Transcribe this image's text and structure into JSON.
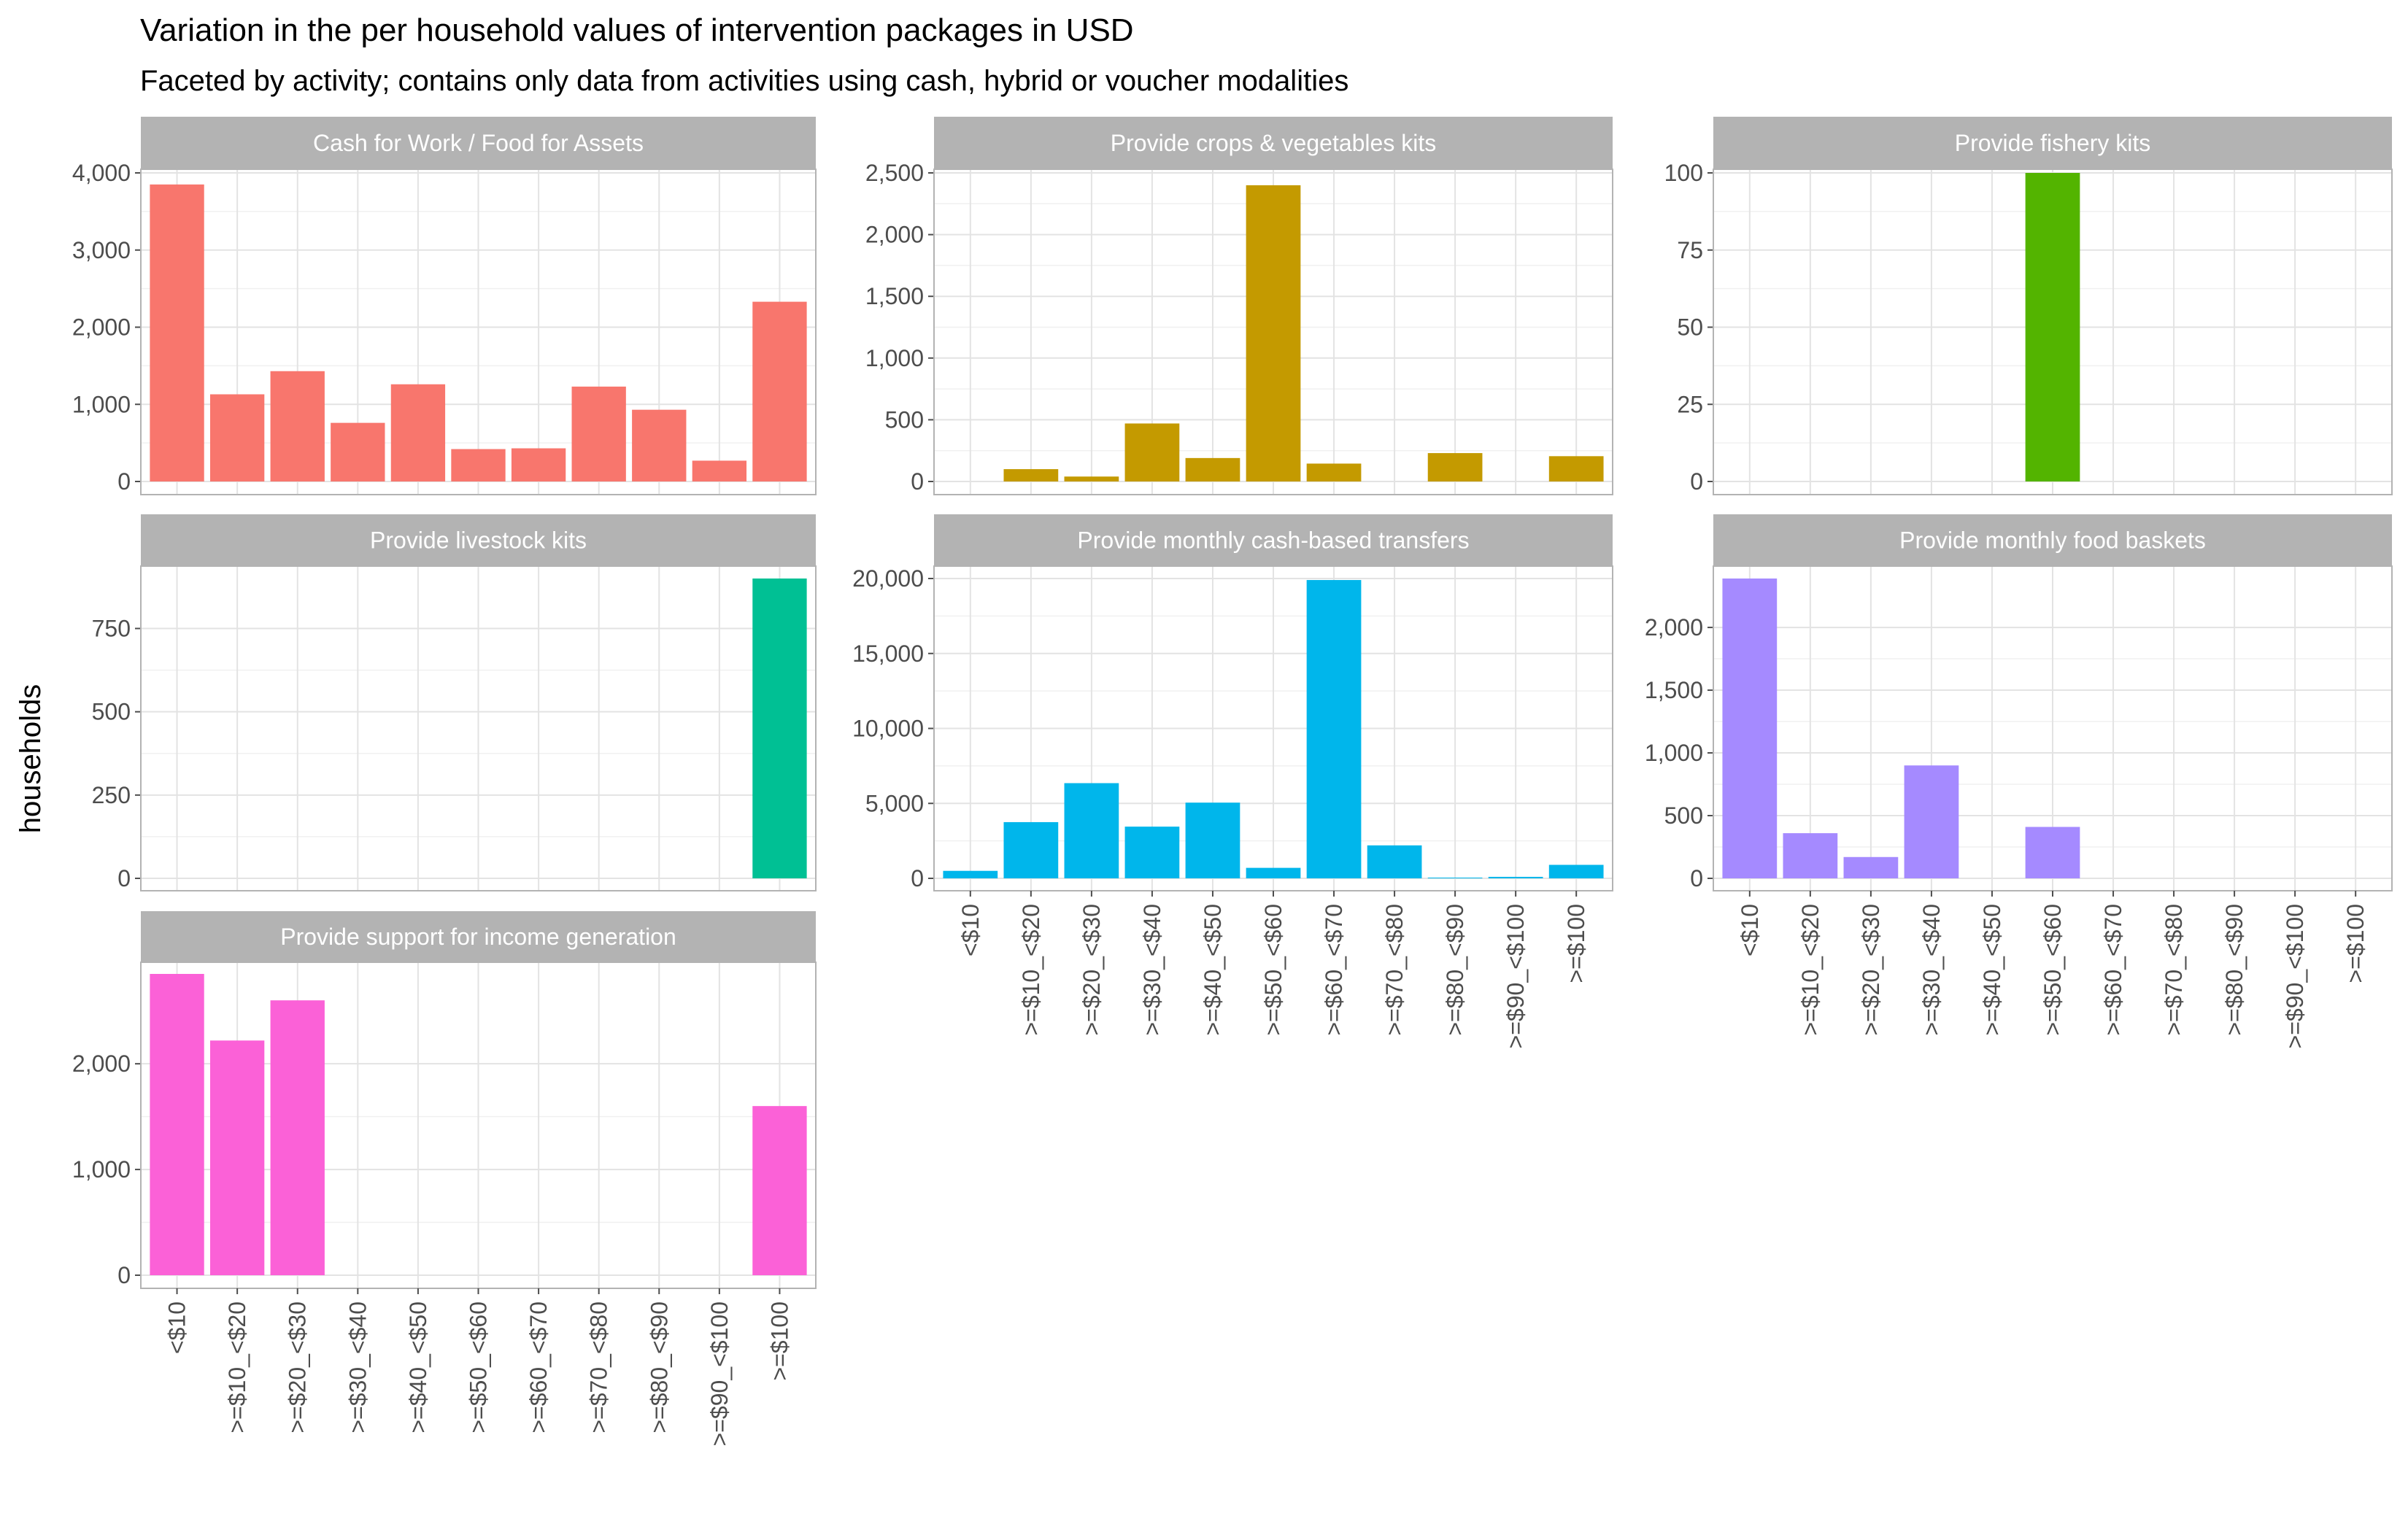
{
  "chart_data": {
    "type": "bar",
    "title": "Variation in the per household values of intervention packages in USD",
    "subtitle": "Faceted by activity; contains only data from activities using cash, hybrid or voucher modalities",
    "ylabel": "households",
    "categories": [
      "<$10",
      ">=$10_<$20",
      ">=$20_<$30",
      ">=$30_<$40",
      ">=$40_<$50",
      ">=$50_<$60",
      ">=$60_<$70",
      ">=$70_<$80",
      ">=$80_<$90",
      ">=$90_<$100",
      ">=$100"
    ],
    "grid": true,
    "scales": "free_y",
    "facets": [
      {
        "name": "Cash for Work / Food for Assets",
        "color": "#F8766D",
        "ylim": [
          0,
          4000
        ],
        "yticks": [
          0,
          1000,
          2000,
          3000,
          4000
        ],
        "ytick_labels": [
          "0",
          "1,000",
          "2,000",
          "3,000",
          "4,000"
        ],
        "values": [
          3850,
          1130,
          1430,
          760,
          1260,
          420,
          430,
          1230,
          930,
          270,
          2330
        ]
      },
      {
        "name": "Provide crops & vegetables kits",
        "color": "#C49A00",
        "ylim": [
          0,
          2500
        ],
        "yticks": [
          0,
          500,
          1000,
          1500,
          2000,
          2500
        ],
        "ytick_labels": [
          "0",
          "500",
          "1,000",
          "1,500",
          "2,000",
          "2,500"
        ],
        "values": [
          0,
          100,
          40,
          470,
          190,
          2400,
          145,
          0,
          230,
          0,
          205
        ]
      },
      {
        "name": "Provide fishery kits",
        "color": "#53B400",
        "ylim": [
          0,
          100
        ],
        "yticks": [
          0,
          25,
          50,
          75,
          100
        ],
        "ytick_labels": [
          "0",
          "25",
          "50",
          "75",
          "100"
        ],
        "values": [
          0,
          0,
          0,
          0,
          0,
          100,
          0,
          0,
          0,
          0,
          0
        ]
      },
      {
        "name": "Provide livestock kits",
        "color": "#00C094",
        "ylim": [
          0,
          750
        ],
        "yticks": [
          0,
          250,
          500,
          750
        ],
        "ytick_labels": [
          "0",
          "250",
          "500",
          "750"
        ],
        "values": [
          0,
          0,
          0,
          0,
          0,
          0,
          0,
          0,
          0,
          0,
          900
        ]
      },
      {
        "name": "Provide monthly cash-based transfers",
        "color": "#00B6EB",
        "ylim": [
          0,
          20000
        ],
        "yticks": [
          0,
          5000,
          10000,
          15000,
          20000
        ],
        "ytick_labels": [
          "0",
          "5,000",
          "10,000",
          "15,000",
          "20,000"
        ],
        "values": [
          500,
          3750,
          6350,
          3450,
          5050,
          700,
          19900,
          2200,
          50,
          100,
          900
        ]
      },
      {
        "name": "Provide monthly food baskets",
        "color": "#A58AFF",
        "ylim": [
          0,
          2000
        ],
        "yticks": [
          0,
          500,
          1000,
          1500,
          2000
        ],
        "ytick_labels": [
          "0",
          "500",
          "1,000",
          "1,500",
          "2,000"
        ],
        "values": [
          2390,
          360,
          170,
          900,
          0,
          410,
          0,
          0,
          0,
          0,
          0
        ]
      },
      {
        "name": "Provide support for income generation",
        "color": "#FB61D7",
        "ylim": [
          0,
          2000
        ],
        "yticks": [
          0,
          1000,
          2000
        ],
        "ytick_labels": [
          "0",
          "1,000",
          "2,000"
        ],
        "values": [
          2850,
          2220,
          2600,
          0,
          0,
          0,
          0,
          0,
          0,
          0,
          1600
        ]
      }
    ]
  }
}
